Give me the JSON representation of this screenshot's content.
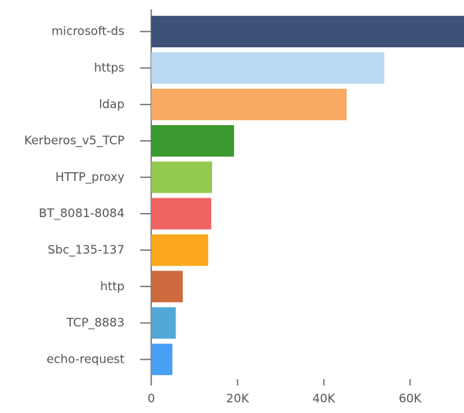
{
  "chart_data": {
    "type": "hbar",
    "categories": [
      "microsoft-ds",
      "https",
      "ldap",
      "Kerberos_v5_TCP",
      "HTTP_proxy",
      "BT_8081-8084",
      "Sbc_135-137",
      "http",
      "TCP_8883",
      "echo-request"
    ],
    "values": [
      72500,
      54000,
      45300,
      19200,
      14100,
      13900,
      13200,
      7300,
      5700,
      4900
    ],
    "colors": [
      "#3d5179",
      "#bcd9f2",
      "#f9a962",
      "#3b9a2f",
      "#94c94f",
      "#f06363",
      "#fca81d",
      "#cc6a3e",
      "#52a9d7",
      "#48a0f5"
    ],
    "xlim": [
      0,
      72500
    ],
    "xticks": [
      0,
      {
        "value": 20000,
        "label": "20K"
      },
      {
        "value": 40000,
        "label": "40K"
      },
      {
        "value": 60000,
        "label": "60K"
      }
    ],
    "grid": false
  }
}
